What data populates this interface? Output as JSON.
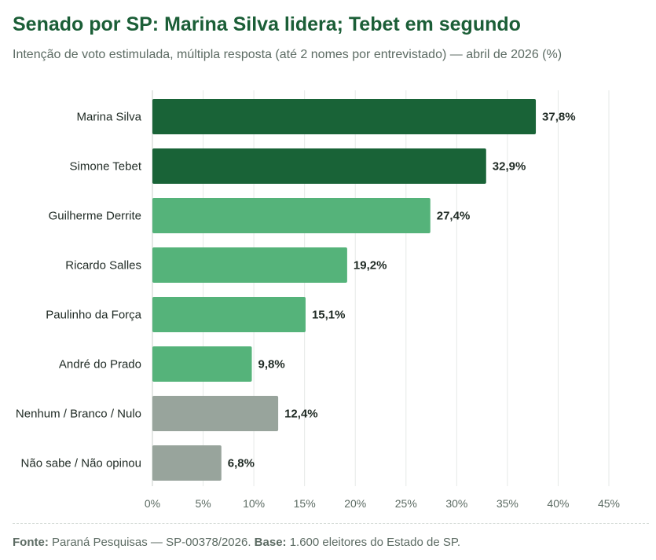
{
  "header": {
    "title": "Senado por SP: Marina Silva lidera; Tebet em segundo",
    "subtitle": "Intenção de voto estimulada, múltipla resposta (até 2 nomes por entrevistado) — abril de 2026 (%)"
  },
  "footer": {
    "source_label": "Fonte:",
    "source_text": " Paraná Pesquisas — SP-00378/2026. ",
    "base_label": "Base:",
    "base_text": " 1.600 eleitores do Estado de SP."
  },
  "colors": {
    "leader": "#196337",
    "candidate": "#55b37a",
    "other": "#98a49c",
    "grid": "#e6e9e7",
    "axis": "#5c6b63"
  },
  "chart_data": {
    "type": "bar",
    "orientation": "horizontal",
    "categories": [
      "Marina Silva",
      "Simone Tebet",
      "Guilherme Derrite",
      "Ricardo Salles",
      "Paulinho da Força",
      "André do Prado",
      "Nenhum / Branco / Nulo",
      "Não sabe / Não opinou"
    ],
    "values": [
      37.8,
      32.9,
      27.4,
      19.2,
      15.1,
      9.8,
      12.4,
      6.8
    ],
    "value_labels": [
      "37,8%",
      "32,9%",
      "27,4%",
      "19,2%",
      "15,1%",
      "9,8%",
      "12,4%",
      "6,8%"
    ],
    "groups": [
      "leader",
      "leader",
      "candidate",
      "candidate",
      "candidate",
      "candidate",
      "other",
      "other"
    ],
    "xlim": [
      0,
      45
    ],
    "xticks": [
      0,
      5,
      10,
      15,
      20,
      25,
      30,
      35,
      40,
      45
    ],
    "xtick_labels": [
      "0%",
      "5%",
      "10%",
      "15%",
      "20%",
      "25%",
      "30%",
      "35%",
      "40%",
      "45%"
    ],
    "grid": true,
    "legend": false,
    "title": "Senado por SP: Marina Silva lidera; Tebet em segundo",
    "subtitle": "Intenção de voto estimulada, múltipla resposta (até 2 nomes por entrevistado) — abril de 2026 (%)"
  }
}
